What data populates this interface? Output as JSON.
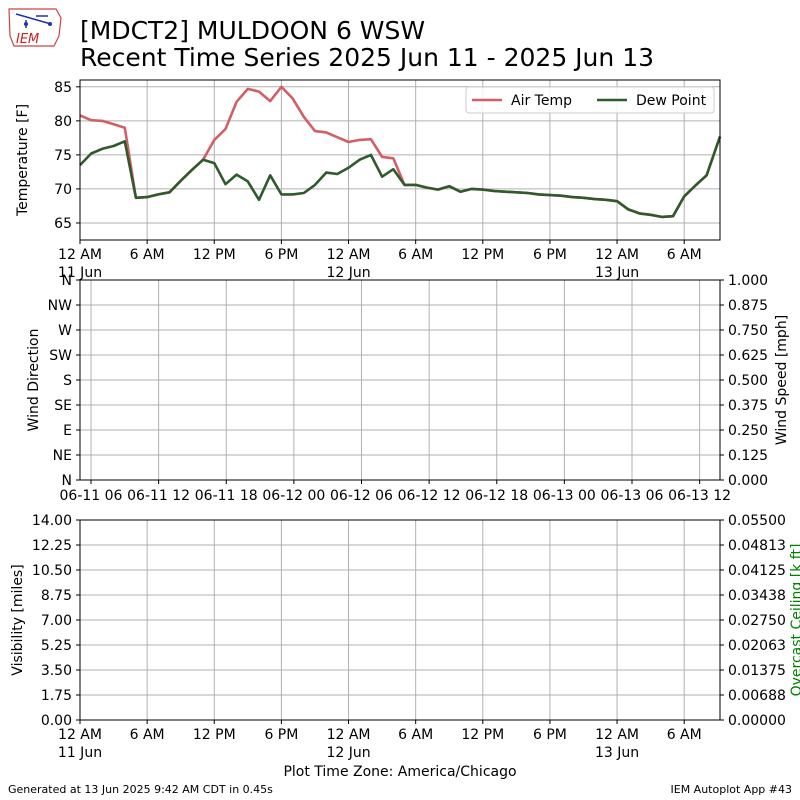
{
  "header": {
    "title_line1": "[MDCT2] MULDOON 6 WSW",
    "title_line2": "Recent Time Series 2025 Jun 11 - 2025 Jun 13",
    "logo_text": "IEM"
  },
  "footer": {
    "generated": "Generated at 13 Jun 2025 9:42 AM CDT in 0.45s",
    "app": "IEM Autoplot App #43"
  },
  "colors": {
    "air_temp": "#d35f66",
    "dew_point": "#2f5a2b",
    "grid": "#b0b0b0",
    "ceiling_label": "#008000"
  },
  "chart_data": [
    {
      "type": "line",
      "ylabel": "Temperature [F]",
      "ylim": [
        62.5,
        86
      ],
      "yticks": [
        65,
        70,
        75,
        80,
        85
      ],
      "x_unit": "hours since 2025-06-11 00:00 CDT",
      "xlim": [
        0,
        57.2
      ],
      "xticks": [
        {
          "x": 0,
          "label": "12 AM",
          "sub": "11 Jun"
        },
        {
          "x": 6,
          "label": "6 AM",
          "sub": ""
        },
        {
          "x": 12,
          "label": "12 PM",
          "sub": ""
        },
        {
          "x": 18,
          "label": "6 PM",
          "sub": ""
        },
        {
          "x": 24,
          "label": "12 AM",
          "sub": "12 Jun"
        },
        {
          "x": 30,
          "label": "6 AM",
          "sub": ""
        },
        {
          "x": 36,
          "label": "12 PM",
          "sub": ""
        },
        {
          "x": 42,
          "label": "6 PM",
          "sub": ""
        },
        {
          "x": 48,
          "label": "12 AM",
          "sub": "13 Jun"
        },
        {
          "x": 54,
          "label": "6 AM",
          "sub": ""
        }
      ],
      "legend_position": "top-right",
      "series": [
        {
          "name": "Air Temp",
          "x": [
            0,
            1,
            2,
            3,
            4,
            5,
            6,
            7,
            8,
            9,
            10,
            11,
            12,
            13,
            14,
            15,
            16,
            17,
            18,
            19,
            20,
            21,
            22,
            23,
            24,
            25,
            26,
            27,
            28,
            29,
            30,
            31,
            32,
            33,
            34,
            35,
            36,
            37,
            38,
            39,
            40,
            41,
            42,
            43,
            44,
            45,
            46,
            47,
            48,
            49,
            50,
            51,
            52,
            53,
            54,
            55,
            56,
            57.2
          ],
          "y": [
            80.8,
            80.1,
            80.0,
            79.5,
            79.0,
            68.7,
            68.8,
            69.2,
            69.5,
            71.2,
            72.8,
            74.3,
            77.2,
            78.8,
            82.8,
            84.7,
            84.3,
            82.9,
            85.0,
            83.3,
            80.6,
            78.5,
            78.3,
            77.6,
            76.9,
            77.2,
            77.3,
            74.7,
            74.5,
            70.6,
            70.6,
            70.2,
            69.9,
            70.4,
            69.6,
            70.0,
            69.9,
            69.7,
            69.6,
            69.5,
            69.4,
            69.2,
            69.1,
            69.0,
            68.8,
            68.7,
            68.5,
            68.4,
            68.2,
            67.0,
            66.4,
            66.2,
            65.9,
            66.0,
            68.9,
            70.5,
            72.0,
            77.7
          ]
        },
        {
          "name": "Dew Point",
          "x": [
            0,
            1,
            2,
            3,
            4,
            5,
            6,
            7,
            8,
            9,
            10,
            11,
            12,
            13,
            14,
            15,
            16,
            17,
            18,
            19,
            20,
            21,
            22,
            23,
            24,
            25,
            26,
            27,
            28,
            29,
            30,
            31,
            32,
            33,
            34,
            35,
            36,
            37,
            38,
            39,
            40,
            41,
            42,
            43,
            44,
            45,
            46,
            47,
            48,
            49,
            50,
            51,
            52,
            53,
            54,
            55,
            56,
            57.2
          ],
          "y": [
            73.5,
            75.2,
            75.9,
            76.3,
            77.0,
            68.7,
            68.8,
            69.2,
            69.5,
            71.2,
            72.8,
            74.3,
            73.8,
            70.7,
            72.1,
            71.1,
            68.4,
            72.0,
            69.2,
            69.2,
            69.4,
            70.6,
            72.4,
            72.2,
            73.1,
            74.3,
            75.0,
            71.8,
            72.9,
            70.6,
            70.6,
            70.2,
            69.9,
            70.4,
            69.6,
            70.0,
            69.9,
            69.7,
            69.6,
            69.5,
            69.4,
            69.2,
            69.1,
            69.0,
            68.8,
            68.7,
            68.5,
            68.4,
            68.2,
            67.0,
            66.4,
            66.2,
            65.9,
            66.0,
            68.9,
            70.5,
            72.0,
            77.7
          ]
        }
      ]
    },
    {
      "type": "scatter",
      "ylabel": "Wind Direction",
      "ylabel_right": "Wind Speed [mph]",
      "ylim": [
        0,
        360
      ],
      "yticks": [
        "N",
        "NE",
        "E",
        "SE",
        "S",
        "SW",
        "W",
        "NW",
        "N"
      ],
      "yticks_right": [
        "0.000",
        "0.125",
        "0.250",
        "0.375",
        "0.500",
        "0.625",
        "0.750",
        "0.875",
        "1.000"
      ],
      "xticks": [
        {
          "x": 0,
          "label": "06-11 06"
        },
        {
          "x": 6,
          "label": "06-11 12"
        },
        {
          "x": 12,
          "label": "06-11 18"
        },
        {
          "x": 18,
          "label": "06-12 00"
        },
        {
          "x": 24,
          "label": "06-12 06"
        },
        {
          "x": 30,
          "label": "06-12 12"
        },
        {
          "x": 36,
          "label": "06-12 18"
        },
        {
          "x": 42,
          "label": "06-13 00"
        },
        {
          "x": 48,
          "label": "06-13 06"
        },
        {
          "x": 54,
          "label": "06-13 12"
        }
      ],
      "series": []
    },
    {
      "type": "line",
      "ylabel": "Visibility [miles]",
      "ylabel_right": "Overcast Ceiling [k ft]",
      "ylim": [
        0,
        14
      ],
      "yticks": [
        "0.00",
        "1.75",
        "3.50",
        "5.25",
        "7.00",
        "8.75",
        "10.50",
        "12.25",
        "14.00"
      ],
      "yticks_right": [
        "0.00000",
        "0.00688",
        "0.01375",
        "0.02063",
        "0.02750",
        "0.03438",
        "0.04125",
        "0.04813",
        "0.05500"
      ],
      "xlabel": "Plot Time Zone: America/Chicago",
      "xticks": [
        {
          "x": 0,
          "label": "12 AM",
          "sub": "11 Jun"
        },
        {
          "x": 6,
          "label": "6 AM",
          "sub": ""
        },
        {
          "x": 12,
          "label": "12 PM",
          "sub": ""
        },
        {
          "x": 18,
          "label": "6 PM",
          "sub": ""
        },
        {
          "x": 24,
          "label": "12 AM",
          "sub": "12 Jun"
        },
        {
          "x": 30,
          "label": "6 AM",
          "sub": ""
        },
        {
          "x": 36,
          "label": "12 PM",
          "sub": ""
        },
        {
          "x": 42,
          "label": "6 PM",
          "sub": ""
        },
        {
          "x": 48,
          "label": "12 AM",
          "sub": "13 Jun"
        },
        {
          "x": 54,
          "label": "6 AM",
          "sub": ""
        }
      ],
      "series": []
    }
  ]
}
